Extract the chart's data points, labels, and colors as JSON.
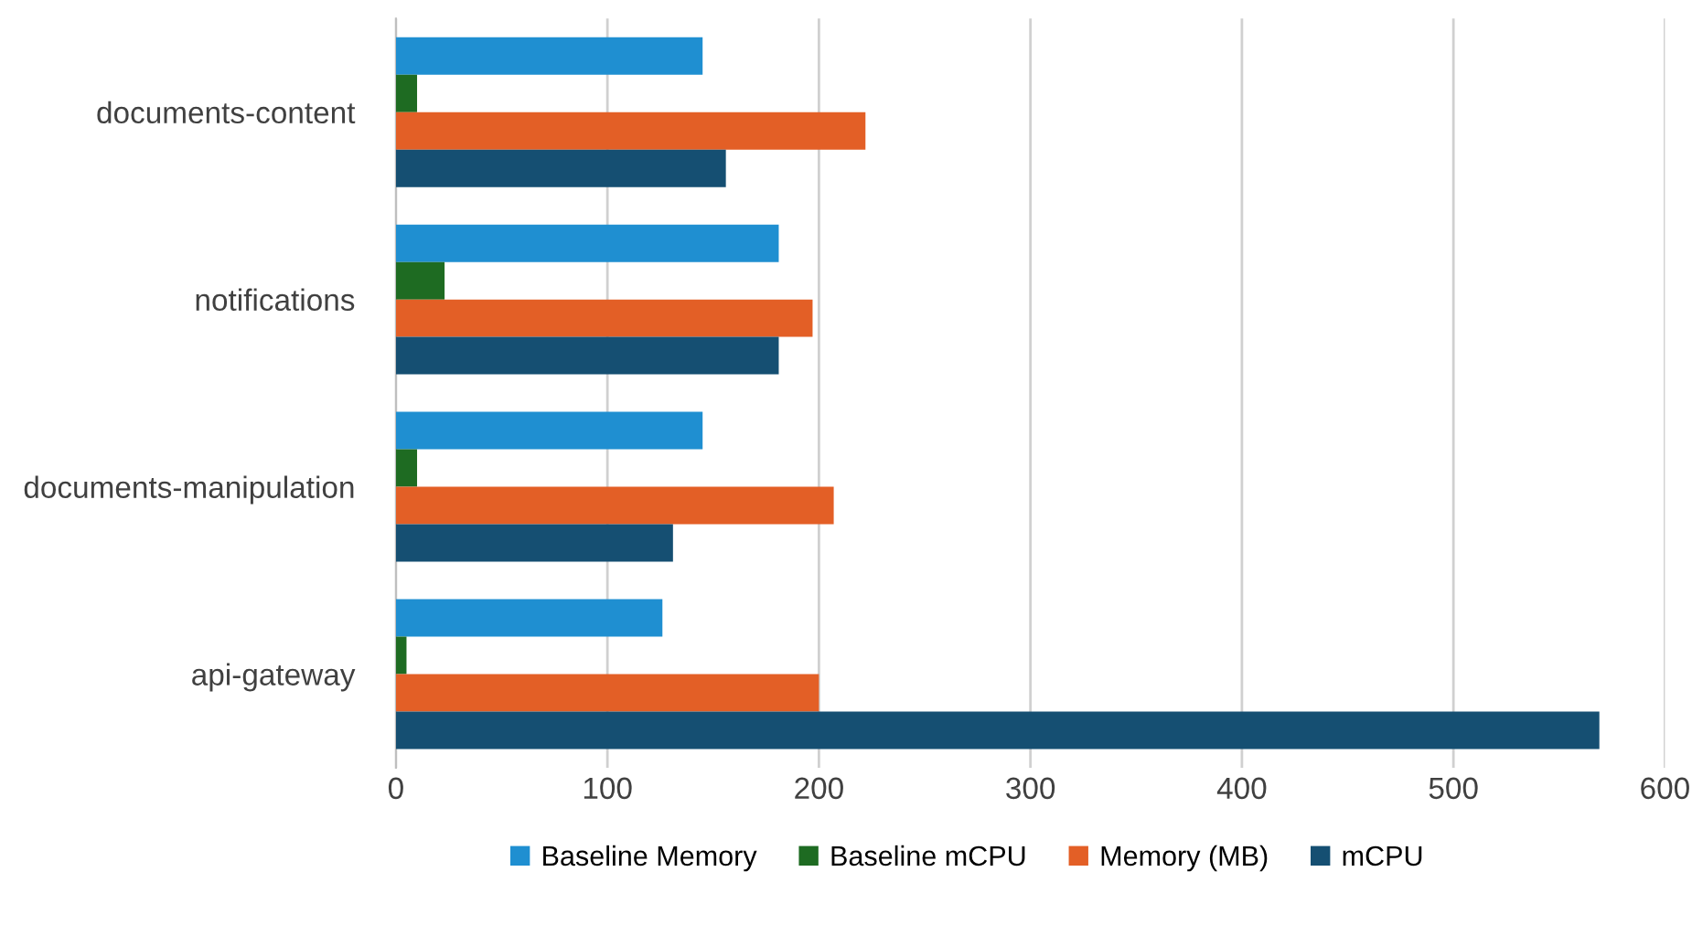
{
  "chart_data": {
    "type": "bar",
    "orientation": "horizontal",
    "categories": [
      "documents-content",
      "notifications",
      "documents-manipulation",
      "api-gateway"
    ],
    "series": [
      {
        "name": "Baseline Memory",
        "color": "#1f8fd1",
        "values": [
          145,
          181,
          145,
          126
        ]
      },
      {
        "name": "Baseline mCPU",
        "color": "#1e6b22",
        "values": [
          10,
          23,
          10,
          5
        ]
      },
      {
        "name": "Memory (MB)",
        "color": "#e35f26",
        "values": [
          222,
          197,
          207,
          200
        ]
      },
      {
        "name": "mCPU",
        "color": "#154f72",
        "values": [
          156,
          181,
          131,
          569
        ]
      }
    ],
    "xlim": [
      0,
      600
    ],
    "xticks": [
      0,
      100,
      200,
      300,
      400,
      500,
      600
    ],
    "grid": "x",
    "legend": "bottom"
  }
}
